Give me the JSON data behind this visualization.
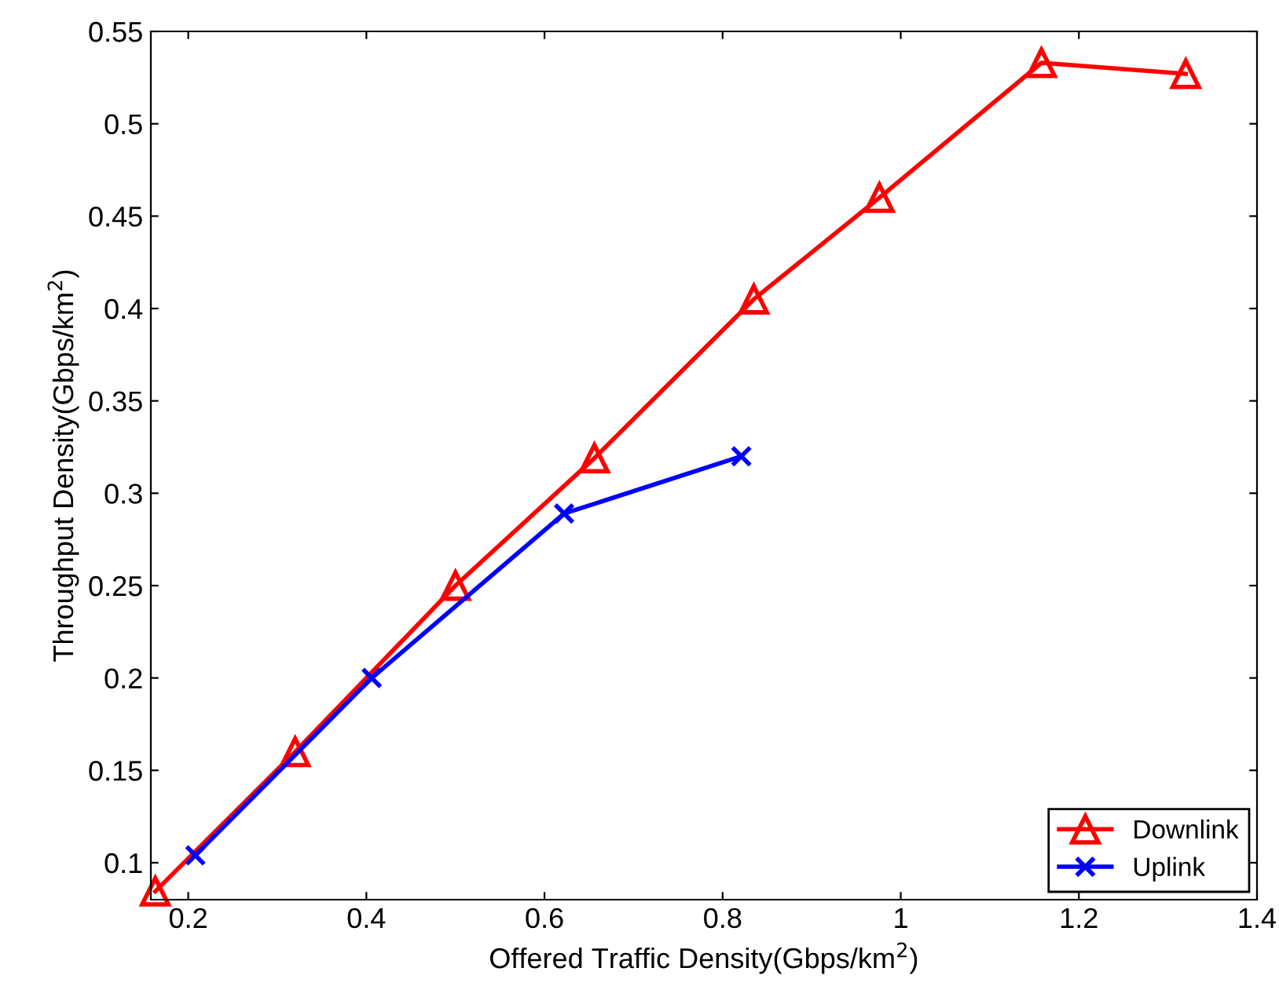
{
  "chart_data": {
    "type": "line",
    "xlabel": "Offered Traffic Density(Gbps/km$^{2}$)",
    "ylabel": "Throughput Density(Gbps/km$^{2}$)",
    "xlim": [
      0.158,
      1.4
    ],
    "xticks": [
      {
        "value": 0.2,
        "label": "0.2"
      },
      {
        "value": 0.4,
        "label": "0.4"
      },
      {
        "value": 0.6,
        "label": "0.6"
      },
      {
        "value": 0.8,
        "label": "0.8"
      },
      {
        "value": 1,
        "label": "1"
      },
      {
        "value": 1.2,
        "label": "1.2"
      },
      {
        "value": 1.4,
        "label": "1.4"
      }
    ],
    "ylim": [
      0.08,
      0.55
    ],
    "yticks": [
      0.1,
      0.15,
      0.2,
      0.25,
      0.3,
      0.35,
      0.4,
      0.45,
      0.5,
      0.55
    ],
    "grid": false,
    "legend": "bottom right",
    "series": [
      {
        "name": "Downlink",
        "color": "#ff0000",
        "marker": "triangle",
        "x": [
          0.163,
          0.32,
          0.5,
          0.656,
          0.835,
          0.976,
          1.158,
          1.32
        ],
        "values": [
          0.0845,
          0.16,
          0.25,
          0.319,
          0.405,
          0.46,
          0.533,
          0.527
        ]
      },
      {
        "name": "Uplink",
        "color": "#0000ff",
        "marker": "cross",
        "x": [
          0.208,
          0.406,
          0.622,
          0.821
        ],
        "values": [
          0.104,
          0.2,
          0.289,
          0.32
        ]
      }
    ]
  }
}
